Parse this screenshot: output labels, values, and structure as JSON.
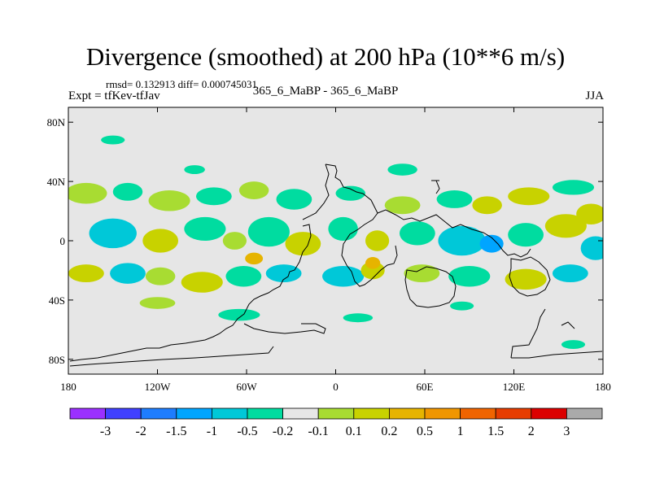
{
  "chart_data": {
    "type": "heatmap",
    "title": "Divergence (smoothed) at 200 hPa (10**6 m/s)",
    "subtitle": "rmsd= 0.132913 diff= 0.000745031",
    "left_string": "Expt = tfKev-tfJav",
    "center_string": "365_6_MaBP - 365_6_MaBP",
    "right_string": "JJA",
    "x_ticks": [
      "180",
      "120W",
      "60W",
      "0",
      "60E",
      "120E",
      "180"
    ],
    "x_tick_values": [
      -180,
      -120,
      -60,
      0,
      60,
      120,
      180
    ],
    "y_ticks": [
      "80N",
      "40N",
      "0",
      "40S",
      "80S"
    ],
    "y_tick_values": [
      80,
      40,
      0,
      -40,
      -80
    ],
    "xlim": [
      -180,
      180
    ],
    "ylim": [
      -90,
      90
    ],
    "background_color": "#e6e6e6",
    "colorbar": {
      "labels": [
        "-3",
        "-2",
        "-1.5",
        "-1",
        "-0.5",
        "-0.2",
        "-0.1",
        "0.1",
        "0.2",
        "0.5",
        "1",
        "1.5",
        "2",
        "3"
      ],
      "colors": [
        "#9b30ff",
        "#4040ff",
        "#1e7dff",
        "#00a5ff",
        "#00c8d8",
        "#00dca0",
        "#e6e6e6",
        "#a8dc32",
        "#c8d200",
        "#e6b400",
        "#f09600",
        "#f06400",
        "#e63c00",
        "#dc0000",
        "#aaaaaa"
      ]
    },
    "blobs": [
      {
        "lon": -150,
        "lat": 68,
        "rx": 8,
        "ry": 3,
        "color": "#00dca0"
      },
      {
        "lon": -95,
        "lat": 48,
        "rx": 7,
        "ry": 3,
        "color": "#00dca0"
      },
      {
        "lon": 45,
        "lat": 48,
        "rx": 10,
        "ry": 4,
        "color": "#00dca0"
      },
      {
        "lon": -168,
        "lat": 32,
        "rx": 14,
        "ry": 7,
        "color": "#a8dc32"
      },
      {
        "lon": -140,
        "lat": 33,
        "rx": 10,
        "ry": 6,
        "color": "#00dca0"
      },
      {
        "lon": -112,
        "lat": 27,
        "rx": 14,
        "ry": 7,
        "color": "#a8dc32"
      },
      {
        "lon": -82,
        "lat": 30,
        "rx": 12,
        "ry": 6,
        "color": "#00dca0"
      },
      {
        "lon": -55,
        "lat": 34,
        "rx": 10,
        "ry": 6,
        "color": "#a8dc32"
      },
      {
        "lon": -28,
        "lat": 28,
        "rx": 12,
        "ry": 7,
        "color": "#00dca0"
      },
      {
        "lon": 10,
        "lat": 32,
        "rx": 10,
        "ry": 5,
        "color": "#00dca0"
      },
      {
        "lon": 45,
        "lat": 24,
        "rx": 12,
        "ry": 6,
        "color": "#a8dc32"
      },
      {
        "lon": 80,
        "lat": 28,
        "rx": 12,
        "ry": 6,
        "color": "#00dca0"
      },
      {
        "lon": 102,
        "lat": 24,
        "rx": 10,
        "ry": 6,
        "color": "#c8d200"
      },
      {
        "lon": 130,
        "lat": 30,
        "rx": 14,
        "ry": 6,
        "color": "#c8d200"
      },
      {
        "lon": 160,
        "lat": 36,
        "rx": 14,
        "ry": 5,
        "color": "#00dca0"
      },
      {
        "lon": 172,
        "lat": 18,
        "rx": 10,
        "ry": 7,
        "color": "#c8d200"
      },
      {
        "lon": -150,
        "lat": 5,
        "rx": 16,
        "ry": 10,
        "color": "#00c8d8"
      },
      {
        "lon": -118,
        "lat": 0,
        "rx": 12,
        "ry": 8,
        "color": "#c8d200"
      },
      {
        "lon": -88,
        "lat": 8,
        "rx": 14,
        "ry": 8,
        "color": "#00dca0"
      },
      {
        "lon": -68,
        "lat": 0,
        "rx": 8,
        "ry": 6,
        "color": "#a8dc32"
      },
      {
        "lon": -45,
        "lat": 6,
        "rx": 14,
        "ry": 10,
        "color": "#00dca0"
      },
      {
        "lon": -22,
        "lat": -2,
        "rx": 12,
        "ry": 8,
        "color": "#c8d200"
      },
      {
        "lon": 5,
        "lat": 8,
        "rx": 10,
        "ry": 8,
        "color": "#00dca0"
      },
      {
        "lon": 28,
        "lat": 0,
        "rx": 8,
        "ry": 7,
        "color": "#c8d200"
      },
      {
        "lon": 55,
        "lat": 5,
        "rx": 12,
        "ry": 8,
        "color": "#00dca0"
      },
      {
        "lon": 85,
        "lat": 0,
        "rx": 16,
        "ry": 10,
        "color": "#00c8d8"
      },
      {
        "lon": 105,
        "lat": -2,
        "rx": 8,
        "ry": 6,
        "color": "#00a5ff"
      },
      {
        "lon": 128,
        "lat": 4,
        "rx": 12,
        "ry": 8,
        "color": "#00dca0"
      },
      {
        "lon": 155,
        "lat": 10,
        "rx": 14,
        "ry": 8,
        "color": "#c8d200"
      },
      {
        "lon": 175,
        "lat": -5,
        "rx": 10,
        "ry": 8,
        "color": "#00c8d8"
      },
      {
        "lon": -168,
        "lat": -22,
        "rx": 12,
        "ry": 6,
        "color": "#c8d200"
      },
      {
        "lon": -140,
        "lat": -22,
        "rx": 12,
        "ry": 7,
        "color": "#00c8d8"
      },
      {
        "lon": -118,
        "lat": -24,
        "rx": 10,
        "ry": 6,
        "color": "#a8dc32"
      },
      {
        "lon": -90,
        "lat": -28,
        "rx": 14,
        "ry": 7,
        "color": "#c8d200"
      },
      {
        "lon": -62,
        "lat": -24,
        "rx": 12,
        "ry": 7,
        "color": "#00dca0"
      },
      {
        "lon": -35,
        "lat": -22,
        "rx": 12,
        "ry": 6,
        "color": "#00c8d8"
      },
      {
        "lon": 5,
        "lat": -24,
        "rx": 14,
        "ry": 7,
        "color": "#00c8d8"
      },
      {
        "lon": 25,
        "lat": -20,
        "rx": 8,
        "ry": 6,
        "color": "#c8d200"
      },
      {
        "lon": 58,
        "lat": -22,
        "rx": 12,
        "ry": 6,
        "color": "#a8dc32"
      },
      {
        "lon": 90,
        "lat": -24,
        "rx": 14,
        "ry": 7,
        "color": "#00dca0"
      },
      {
        "lon": 128,
        "lat": -26,
        "rx": 14,
        "ry": 7,
        "color": "#c8d200"
      },
      {
        "lon": 158,
        "lat": -22,
        "rx": 12,
        "ry": 6,
        "color": "#00c8d8"
      },
      {
        "lon": -120,
        "lat": -42,
        "rx": 12,
        "ry": 4,
        "color": "#a8dc32"
      },
      {
        "lon": -65,
        "lat": -50,
        "rx": 14,
        "ry": 4,
        "color": "#00dca0"
      },
      {
        "lon": 15,
        "lat": -52,
        "rx": 10,
        "ry": 3,
        "color": "#00dca0"
      },
      {
        "lon": 85,
        "lat": -44,
        "rx": 8,
        "ry": 3,
        "color": "#00dca0"
      },
      {
        "lon": 160,
        "lat": -70,
        "rx": 8,
        "ry": 3,
        "color": "#00dca0"
      },
      {
        "lon": -55,
        "lat": -12,
        "rx": 6,
        "ry": 4,
        "color": "#e6b400"
      },
      {
        "lon": 25,
        "lat": -15,
        "rx": 5,
        "ry": 4,
        "color": "#e6b400"
      }
    ]
  }
}
